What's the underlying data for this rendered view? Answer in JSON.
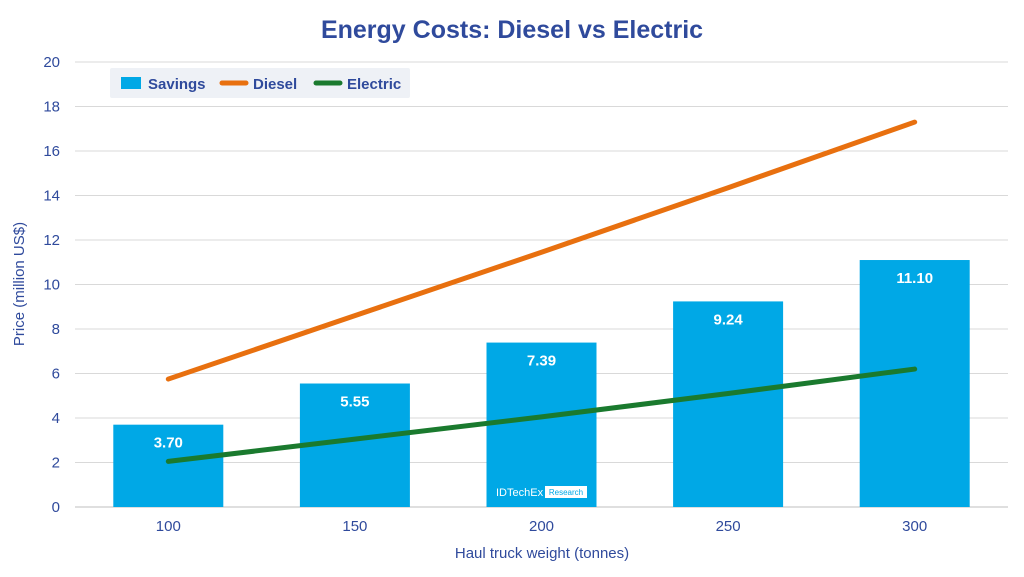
{
  "colors": {
    "title": "#2f4a9c",
    "axis_text": "#2f4a9c",
    "grid": "#d9d9d9",
    "savings": "#00a8e6",
    "diesel": "#e8700f",
    "electric": "#1a7a2e",
    "legend_bg": "#eef1f6"
  },
  "watermark": {
    "brand": "IDTechEx",
    "tag": "Research"
  },
  "chart_data": {
    "type": "bar",
    "title": "Energy Costs: Diesel vs Electric",
    "xlabel": "Haul truck weight (tonnes)",
    "ylabel": "Price (million US$)",
    "categories": [
      "100",
      "150",
      "200",
      "250",
      "300"
    ],
    "ylim": [
      0,
      20
    ],
    "yticks": [
      0,
      2,
      4,
      6,
      8,
      10,
      12,
      14,
      16,
      18,
      20
    ],
    "grid": true,
    "legend_position": "top-left",
    "series": [
      {
        "name": "Savings",
        "type": "bar",
        "values": [
          3.7,
          5.55,
          7.39,
          9.24,
          11.1
        ],
        "labels": [
          "3.70",
          "5.55",
          "7.39",
          "9.24",
          "11.10"
        ]
      },
      {
        "name": "Diesel",
        "type": "line",
        "values": [
          5.75,
          8.6,
          11.45,
          14.35,
          17.3
        ]
      },
      {
        "name": "Electric",
        "type": "line",
        "values": [
          2.05,
          3.05,
          4.05,
          5.1,
          6.2
        ]
      }
    ]
  }
}
